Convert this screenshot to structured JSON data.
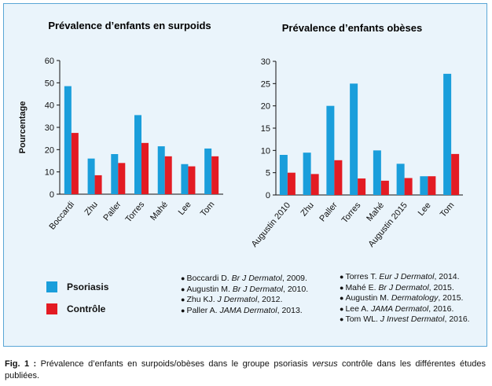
{
  "colors": {
    "psoriasis": "#1a9edb",
    "controle": "#e31b23",
    "panel_bg": "#eaf4fb",
    "panel_border": "#5aa6d6"
  },
  "chart_data": [
    {
      "type": "bar",
      "title": "Prévalence d’enfants en surpoids",
      "ylabel": "Pourcentage",
      "ylim": [
        0,
        60
      ],
      "yticks": [
        0,
        10,
        20,
        30,
        40,
        50,
        60
      ],
      "grid": false,
      "categories": [
        "Boccardi",
        "Zhu",
        "Paller",
        "Torres",
        "Mahé",
        "Lee",
        "Tom"
      ],
      "series": [
        {
          "name": "Psoriasis",
          "values": [
            48.5,
            16,
            18,
            35.5,
            21.5,
            13.5,
            20.5
          ]
        },
        {
          "name": "Contrôle",
          "values": [
            27.5,
            8.5,
            14,
            23,
            17,
            12.5,
            17
          ]
        }
      ]
    },
    {
      "type": "bar",
      "title": "Prévalence d’enfants obèses",
      "ylabel": "",
      "ylim": [
        0,
        30
      ],
      "yticks": [
        0,
        5,
        10,
        15,
        20,
        25,
        30
      ],
      "grid": false,
      "categories": [
        "Augustin 2010",
        "Zhu",
        "Paller",
        "Torres",
        "Mahé",
        "Augustin 2015",
        "Lee",
        "Tom"
      ],
      "series": [
        {
          "name": "Psoriasis",
          "values": [
            9,
            9.5,
            20,
            25,
            10,
            7,
            4.2,
            27.2
          ]
        },
        {
          "name": "Contrôle",
          "values": [
            5,
            4.7,
            7.8,
            3.7,
            3.2,
            3.8,
            4.2,
            9.2
          ]
        }
      ]
    }
  ],
  "legend": {
    "psoriasis": "Psoriasis",
    "controle": "Contrôle"
  },
  "references_left": [
    {
      "pre": "Boccardi D. ",
      "journal": "Br J Dermatol",
      "post": ", 2009."
    },
    {
      "pre": "Augustin M. ",
      "journal": "Br J Dermatol",
      "post": ", 2010."
    },
    {
      "pre": "Zhu KJ. ",
      "journal": "J Dermatol",
      "post": ", 2012."
    },
    {
      "pre": "Paller A. ",
      "journal": "JAMA Dermatol",
      "post": ", 2013."
    }
  ],
  "references_right": [
    {
      "pre": "Torres T. ",
      "journal": "Eur J Dermatol",
      "post": ", 2014."
    },
    {
      "pre": "Mahé E. ",
      "journal": "Br J Dermatol",
      "post": ", 2015."
    },
    {
      "pre": "Augustin M. ",
      "journal": "Dermatology",
      "post": ", 2015."
    },
    {
      "pre": "Lee A. ",
      "journal": "JAMA Dermatol",
      "post": ", 2016."
    },
    {
      "pre": "Tom WL. ",
      "journal": "J Invest Dermatol",
      "post": ", 2016."
    }
  ],
  "caption": {
    "label": "Fig. 1 :",
    "text_before": " Prévalence d’enfants en surpoids/obèses dans le groupe psoriasis ",
    "text_italic": "versus",
    "text_after": " contrôle dans les différentes études publiées."
  }
}
